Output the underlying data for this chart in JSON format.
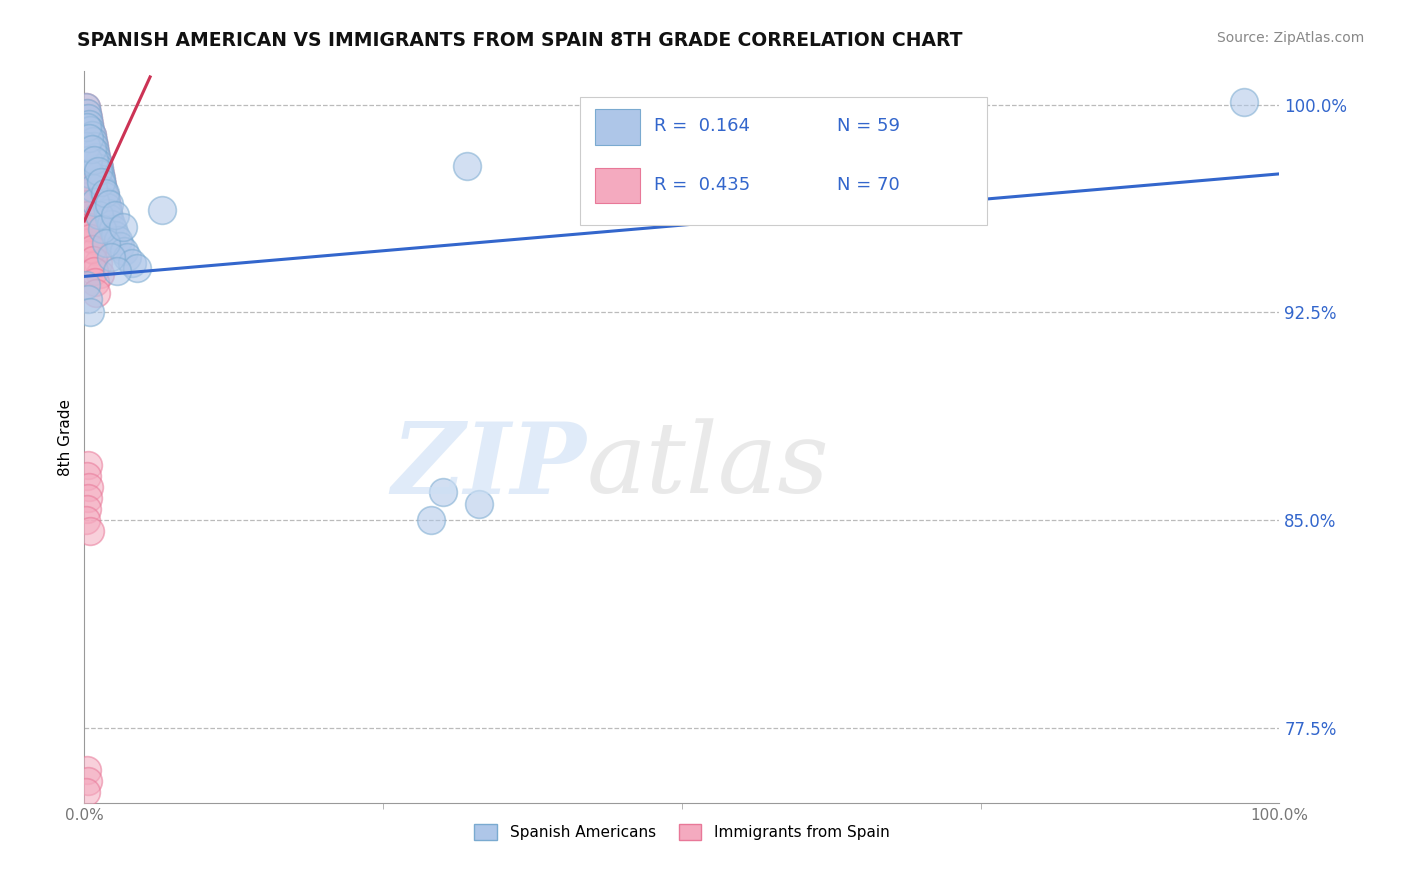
{
  "title": "SPANISH AMERICAN VS IMMIGRANTS FROM SPAIN 8TH GRADE CORRELATION CHART",
  "source": "Source: ZipAtlas.com",
  "ylabel": "8th Grade",
  "xlim": [
    0.0,
    1.0
  ],
  "ylim": [
    0.748,
    1.012
  ],
  "yticks": [
    0.775,
    0.85,
    0.925,
    1.0
  ],
  "ytick_labels": [
    "77.5%",
    "85.0%",
    "92.5%",
    "100.0%"
  ],
  "xticks": [
    0.0,
    1.0
  ],
  "xtick_labels": [
    "0.0%",
    "100.0%"
  ],
  "legend_r_blue": "R =  0.164",
  "legend_n_blue": "N = 59",
  "legend_r_pink": "R =  0.435",
  "legend_n_pink": "N = 70",
  "legend_label_blue": "Spanish Americans",
  "legend_label_pink": "Immigrants from Spain",
  "blue_color": "#aec6e8",
  "pink_color": "#f4aabf",
  "blue_edge_color": "#7aaad0",
  "pink_edge_color": "#e87898",
  "trend_blue_color": "#3366cc",
  "trend_pink_color": "#cc3355",
  "grid_color": "#bbbbbb",
  "blue_trend_x": [
    0.0,
    1.0
  ],
  "blue_trend_y": [
    0.938,
    0.975
  ],
  "pink_trend_x": [
    0.0,
    0.055
  ],
  "pink_trend_y": [
    0.958,
    1.01
  ],
  "blue_scatter_x": [
    0.001,
    0.002,
    0.003,
    0.004,
    0.005,
    0.006,
    0.007,
    0.008,
    0.009,
    0.01,
    0.011,
    0.012,
    0.013,
    0.014,
    0.015,
    0.016,
    0.017,
    0.018,
    0.019,
    0.02,
    0.021,
    0.022,
    0.024,
    0.026,
    0.028,
    0.03,
    0.033,
    0.036,
    0.04,
    0.044,
    0.001,
    0.003,
    0.005,
    0.007,
    0.009,
    0.012,
    0.015,
    0.018,
    0.022,
    0.027,
    0.002,
    0.004,
    0.006,
    0.008,
    0.011,
    0.014,
    0.017,
    0.021,
    0.026,
    0.032,
    0.001,
    0.003,
    0.005,
    0.065,
    0.32,
    0.97,
    0.33,
    0.3,
    0.29
  ],
  "blue_scatter_y": [
    0.999,
    0.997,
    0.995,
    0.993,
    0.991,
    0.989,
    0.987,
    0.985,
    0.983,
    0.981,
    0.979,
    0.977,
    0.975,
    0.973,
    0.971,
    0.969,
    0.967,
    0.965,
    0.963,
    0.961,
    0.959,
    0.957,
    0.955,
    0.953,
    0.951,
    0.949,
    0.947,
    0.945,
    0.943,
    0.941,
    0.985,
    0.98,
    0.975,
    0.97,
    0.965,
    0.96,
    0.955,
    0.95,
    0.945,
    0.94,
    0.992,
    0.988,
    0.984,
    0.98,
    0.976,
    0.972,
    0.968,
    0.964,
    0.96,
    0.956,
    0.935,
    0.93,
    0.925,
    0.962,
    0.978,
    1.001,
    0.856,
    0.86,
    0.85
  ],
  "pink_scatter_x": [
    0.001,
    0.002,
    0.003,
    0.004,
    0.005,
    0.006,
    0.007,
    0.008,
    0.009,
    0.01,
    0.011,
    0.012,
    0.013,
    0.014,
    0.015,
    0.016,
    0.017,
    0.018,
    0.019,
    0.02,
    0.001,
    0.002,
    0.003,
    0.004,
    0.005,
    0.006,
    0.008,
    0.01,
    0.012,
    0.015,
    0.002,
    0.003,
    0.004,
    0.005,
    0.007,
    0.009,
    0.011,
    0.013,
    0.016,
    0.019,
    0.001,
    0.002,
    0.003,
    0.004,
    0.005,
    0.006,
    0.007,
    0.009,
    0.011,
    0.013,
    0.001,
    0.002,
    0.003,
    0.004,
    0.005,
    0.006,
    0.007,
    0.008,
    0.009,
    0.01,
    0.003,
    0.002,
    0.004,
    0.003,
    0.002,
    0.001,
    0.005,
    0.002,
    0.003,
    0.001
  ],
  "pink_scatter_y": [
    0.999,
    0.997,
    0.995,
    0.993,
    0.991,
    0.989,
    0.987,
    0.985,
    0.983,
    0.981,
    0.979,
    0.977,
    0.975,
    0.973,
    0.971,
    0.969,
    0.967,
    0.965,
    0.963,
    0.961,
    0.992,
    0.988,
    0.984,
    0.98,
    0.976,
    0.972,
    0.968,
    0.964,
    0.96,
    0.956,
    0.985,
    0.981,
    0.977,
    0.973,
    0.969,
    0.965,
    0.961,
    0.957,
    0.953,
    0.949,
    0.975,
    0.971,
    0.967,
    0.963,
    0.959,
    0.955,
    0.951,
    0.947,
    0.943,
    0.939,
    0.968,
    0.964,
    0.96,
    0.956,
    0.952,
    0.948,
    0.944,
    0.94,
    0.936,
    0.932,
    0.87,
    0.866,
    0.862,
    0.858,
    0.854,
    0.85,
    0.846,
    0.76,
    0.756,
    0.752
  ]
}
